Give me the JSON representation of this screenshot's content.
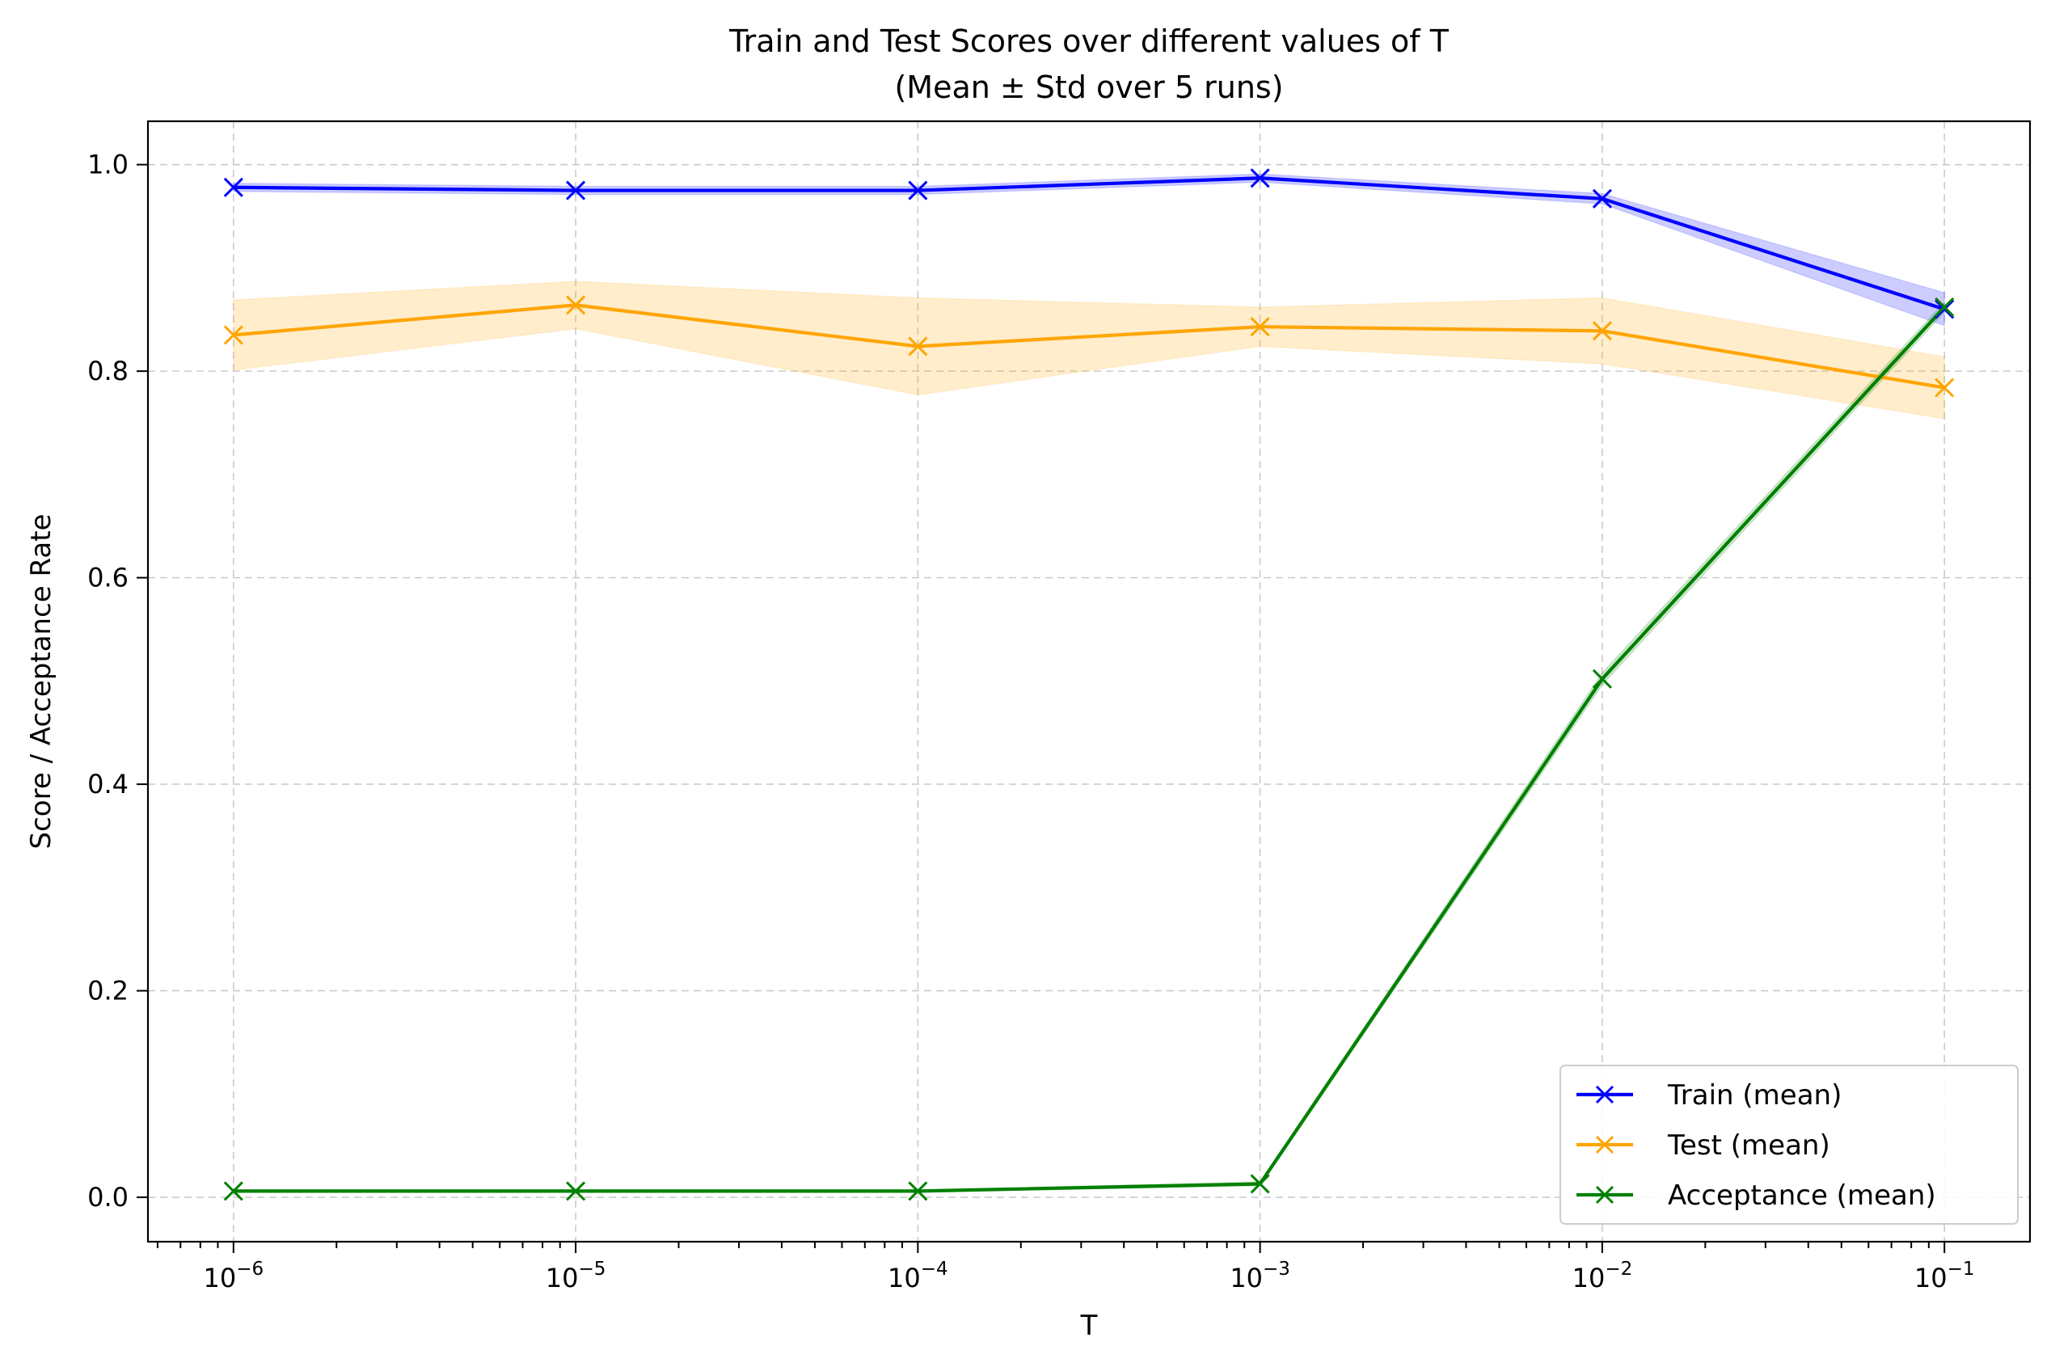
{
  "chart_data": {
    "type": "line",
    "title": "Train and Test Scores over different values of T",
    "subtitle": "(Mean ± Std over 5 runs)",
    "xlabel": "T",
    "ylabel": "Score / Acceptance Rate",
    "x_scale": "log",
    "x": [
      1e-06,
      1e-05,
      0.0001,
      0.001,
      0.01,
      0.1
    ],
    "x_tick_labels": [
      {
        "base": "10",
        "exp": "−6"
      },
      {
        "base": "10",
        "exp": "−5"
      },
      {
        "base": "10",
        "exp": "−4"
      },
      {
        "base": "10",
        "exp": "−3"
      },
      {
        "base": "10",
        "exp": "−2"
      },
      {
        "base": "10",
        "exp": "−1"
      }
    ],
    "y_ticks": [
      0.0,
      0.2,
      0.4,
      0.6,
      0.8,
      1.0
    ],
    "y_tick_labels": [
      "0.0",
      "0.2",
      "0.4",
      "0.6",
      "0.8",
      "1.0"
    ],
    "ylim": [
      -0.043,
      1.042
    ],
    "xlim_log10": [
      -6.25,
      -0.75
    ],
    "grid": true,
    "legend_position": "bottom-right",
    "series": [
      {
        "name": "Train (mean)",
        "color": "#0000ff",
        "values": [
          0.978,
          0.975,
          0.975,
          0.987,
          0.967,
          0.86
        ],
        "std": [
          0.004,
          0.004,
          0.004,
          0.004,
          0.005,
          0.016
        ]
      },
      {
        "name": "Test (mean)",
        "color": "#ffa500",
        "values": [
          0.835,
          0.864,
          0.824,
          0.843,
          0.839,
          0.784
        ],
        "std": [
          0.034,
          0.023,
          0.047,
          0.019,
          0.032,
          0.03
        ]
      },
      {
        "name": "Acceptance (mean)",
        "color": "#008000",
        "values": [
          0.006,
          0.006,
          0.006,
          0.013,
          0.502,
          0.862
        ],
        "std": [
          0.001,
          0.001,
          0.001,
          0.002,
          0.006,
          0.005
        ]
      }
    ]
  }
}
